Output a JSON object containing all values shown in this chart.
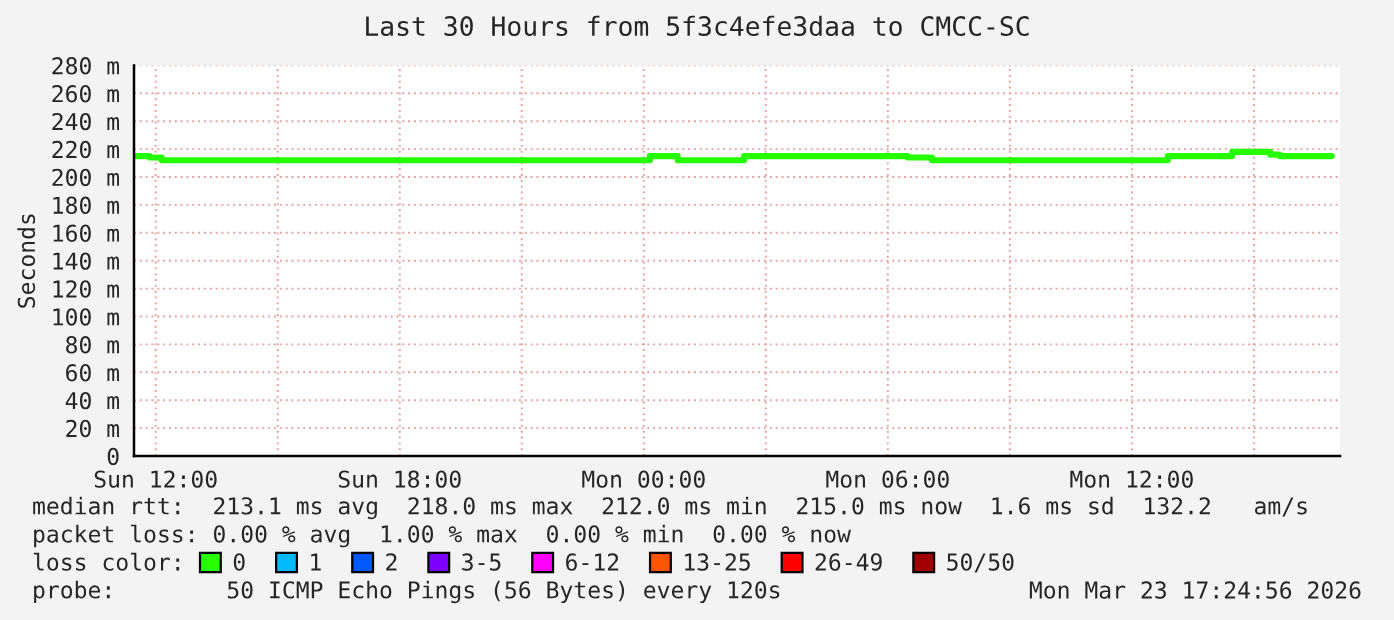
{
  "chart_data": {
    "type": "step",
    "title": "Last 30 Hours from 5f3c4efe3daa to CMCC-SC",
    "ylabel": "Seconds",
    "x": [
      "2026-03-22T11:28",
      "2026-03-22T11:51",
      "2026-03-22T12:09",
      "2026-03-23T00:09",
      "2026-03-23T00:50",
      "2026-03-23T02:28",
      "2026-03-23T06:29",
      "2026-03-23T07:05",
      "2026-03-23T12:53",
      "2026-03-23T14:28",
      "2026-03-23T15:24",
      "2026-03-23T15:38",
      "2026-03-23T16:55"
    ],
    "series": [
      {
        "name": "0",
        "color": "#26ff00",
        "values": [
          215,
          214,
          212,
          215,
          212,
          215,
          214,
          212,
          215,
          218,
          216,
          215,
          215
        ]
      },
      {
        "name": "1",
        "color": "#00b8ff",
        "values": [
          null,
          null,
          null,
          null,
          null,
          null,
          null,
          null,
          null,
          null,
          null,
          null,
          null
        ]
      },
      {
        "name": "2",
        "color": "#0059ff",
        "values": [
          null,
          null,
          null,
          null,
          null,
          null,
          null,
          null,
          null,
          null,
          null,
          null,
          null
        ]
      },
      {
        "name": "3-5",
        "color": "#7e00ff",
        "values": [
          null,
          null,
          null,
          null,
          null,
          null,
          null,
          null,
          null,
          null,
          null,
          null,
          null
        ]
      },
      {
        "name": "6-12",
        "color": "#ff00ff",
        "values": [
          null,
          null,
          null,
          null,
          null,
          null,
          null,
          null,
          null,
          null,
          null,
          null,
          null
        ]
      },
      {
        "name": "13-25",
        "color": "#ff5500",
        "values": [
          null,
          null,
          null,
          null,
          null,
          null,
          null,
          null,
          null,
          null,
          null,
          null,
          null
        ]
      },
      {
        "name": "26-49",
        "color": "#ff0000",
        "values": [
          null,
          null,
          null,
          null,
          null,
          null,
          null,
          null,
          null,
          null,
          null,
          null,
          null
        ]
      },
      {
        "name": "50/50",
        "color": "#a10000",
        "values": [
          null,
          null,
          null,
          null,
          null,
          null,
          null,
          null,
          null,
          null,
          null,
          null,
          null
        ]
      }
    ],
    "legend_title": "loss color:",
    "legend": "bottom",
    "xlim": [
      "2026-03-22T11:28",
      "2026-03-23T17:07"
    ],
    "xticks": [
      {
        "value": "2026-03-22T12:00",
        "label": "Sun 12:00"
      },
      {
        "value": "2026-03-22T15:00",
        "label": null
      },
      {
        "value": "2026-03-22T18:00",
        "label": "Sun 18:00"
      },
      {
        "value": "2026-03-22T21:00",
        "label": null
      },
      {
        "value": "2026-03-23T00:00",
        "label": "Mon 00:00"
      },
      {
        "value": "2026-03-23T03:00",
        "label": null
      },
      {
        "value": "2026-03-23T06:00",
        "label": "Mon 06:00"
      },
      {
        "value": "2026-03-23T09:00",
        "label": null
      },
      {
        "value": "2026-03-23T12:00",
        "label": "Mon 12:00"
      },
      {
        "value": "2026-03-23T15:00",
        "label": null
      }
    ],
    "ylim": [
      0,
      280
    ],
    "yticks": [
      0,
      {
        "value": 20,
        "label": "20 m"
      },
      {
        "value": 40,
        "label": "40 m"
      },
      {
        "value": 60,
        "label": "60 m"
      },
      {
        "value": 80,
        "label": "80 m"
      },
      {
        "value": 100,
        "label": "100 m"
      },
      {
        "value": 120,
        "label": "120 m"
      },
      {
        "value": 140,
        "label": "140 m"
      },
      {
        "value": 160,
        "label": "160 m"
      },
      {
        "value": 180,
        "label": "180 m"
      },
      {
        "value": 200,
        "label": "200 m"
      },
      {
        "value": 220,
        "label": "220 m"
      },
      {
        "value": 240,
        "label": "240 m"
      },
      {
        "value": 260,
        "label": "260 m"
      },
      {
        "value": 280,
        "label": "280 m"
      }
    ],
    "grid": true,
    "annotations": [
      "median rtt:  213.1 ms avg  218.0 ms max  212.0 ms min  215.0 ms now  1.6 ms sd  132.2   am/s",
      "packet loss: 0.00 % avg  1.00 % max  0.00 % min  0.00 % now",
      "probe:        50 ICMP Echo Pings (56 Bytes) every 120s",
      "Mon Mar 23 17:24:56 2026"
    ]
  }
}
